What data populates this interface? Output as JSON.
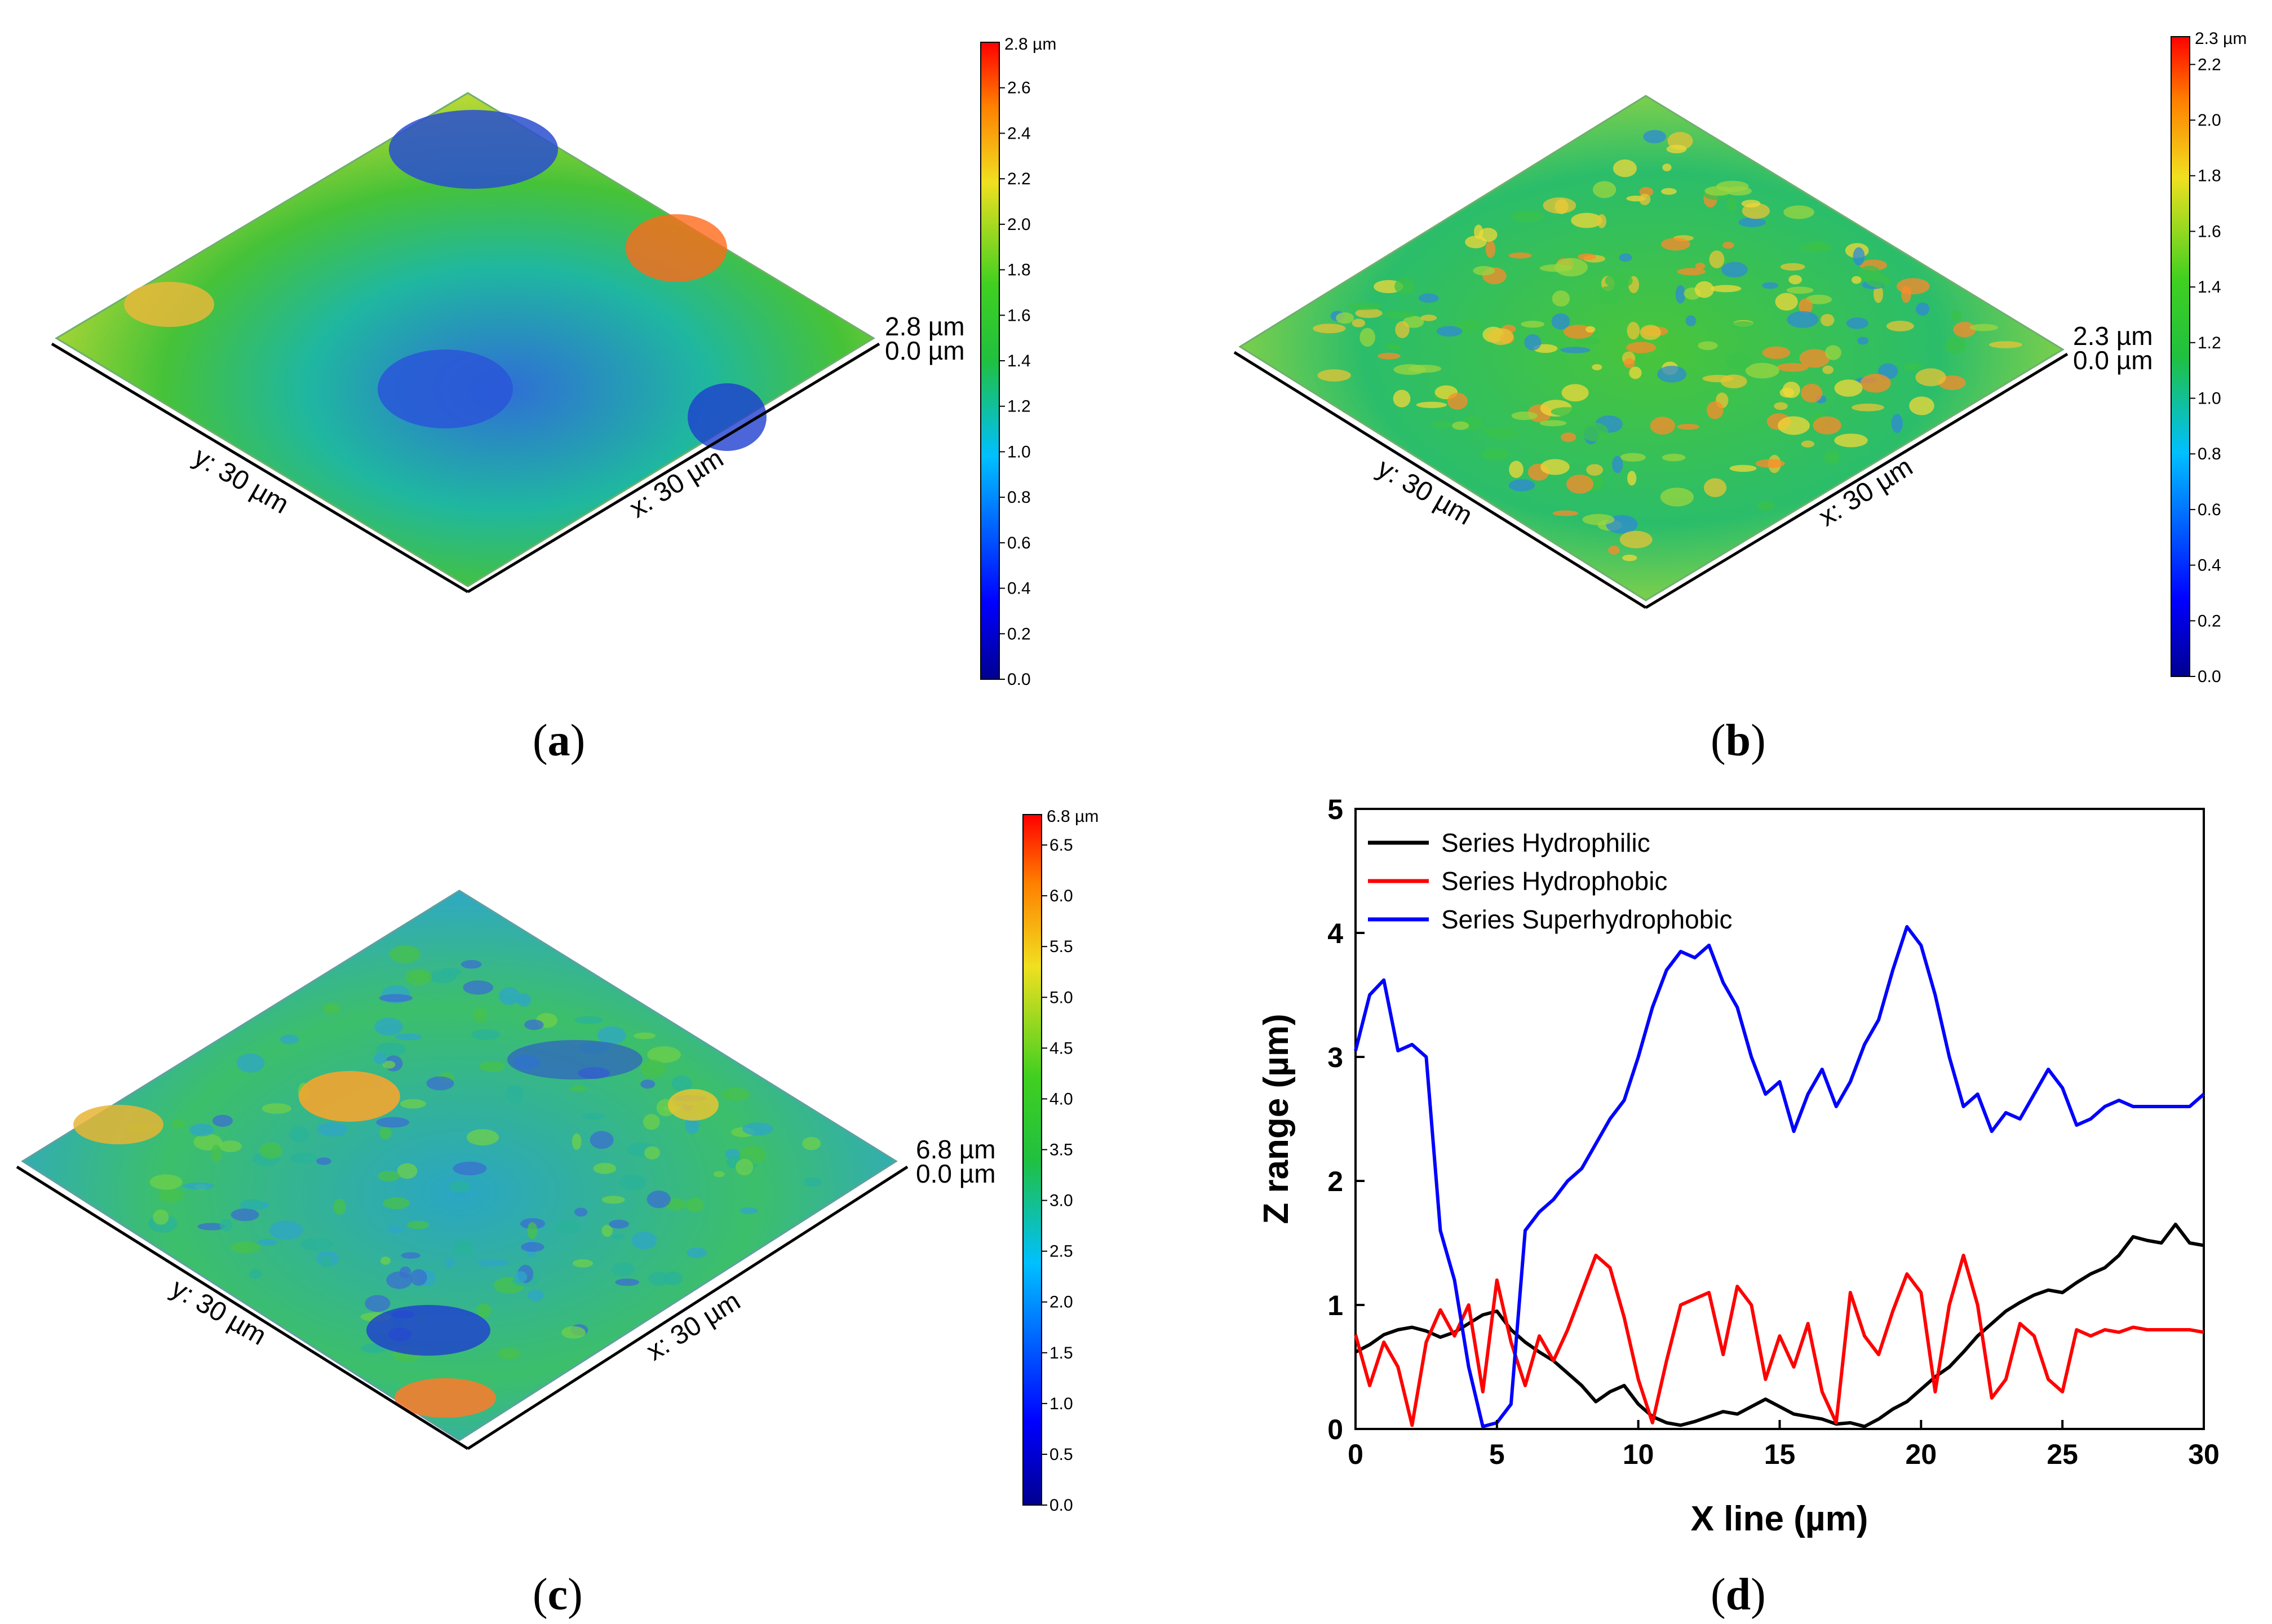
{
  "panels": [
    {
      "id": "a",
      "label_letter": "a",
      "kind": "afm-3d",
      "scale_unit_label": "2.8 µm",
      "scale_max": 2.8,
      "scale_ticks": [
        "0.0",
        "0.2",
        "0.4",
        "0.6",
        "0.8",
        "1.0",
        "1.2",
        "1.4",
        "1.6",
        "1.8",
        "2.0",
        "2.2",
        "2.4",
        "2.6"
      ],
      "z_top_label": "2.8 µm",
      "z_bottom_label": "0.0 µm",
      "y_axis_label": "y: 30 µm",
      "x_axis_label": "x: 30 µm"
    },
    {
      "id": "b",
      "label_letter": "b",
      "kind": "afm-3d",
      "scale_unit_label": "2.3 µm",
      "scale_max": 2.3,
      "scale_ticks": [
        "0.0",
        "0.2",
        "0.4",
        "0.6",
        "0.8",
        "1.0",
        "1.2",
        "1.4",
        "1.6",
        "1.8",
        "2.0",
        "2.2"
      ],
      "z_top_label": "2.3 µm",
      "z_bottom_label": "0.0 µm",
      "y_axis_label": "y: 30 µm",
      "x_axis_label": "x: 30 µm"
    },
    {
      "id": "c",
      "label_letter": "c",
      "kind": "afm-3d",
      "scale_unit_label": "6.8 µm",
      "scale_max": 6.8,
      "scale_ticks": [
        "0.0",
        "0.5",
        "1.0",
        "1.5",
        "2.0",
        "2.5",
        "3.0",
        "3.5",
        "4.0",
        "4.5",
        "5.0",
        "5.5",
        "6.0",
        "6.5"
      ],
      "z_top_label": "6.8 µm",
      "z_bottom_label": "0.0 µm",
      "y_axis_label": "y: 30 µm",
      "x_axis_label": "x: 30 µm"
    }
  ],
  "chart_data": {
    "panel_letter": "d",
    "type": "line",
    "title": "",
    "xlabel": "X line (µm)",
    "ylabel": "Z range (µm)",
    "xlim": [
      0,
      30
    ],
    "ylim": [
      0,
      5
    ],
    "xticks": [
      0,
      5,
      10,
      15,
      20,
      25,
      30
    ],
    "yticks": [
      0,
      1,
      2,
      3,
      4,
      5
    ],
    "legend_position": "top-left",
    "series": [
      {
        "name": "Series Hydrophilic",
        "color": "#000000",
        "x": [
          0,
          0.5,
          1,
          1.5,
          2,
          2.5,
          3,
          3.5,
          4,
          4.5,
          5,
          5.5,
          6,
          6.5,
          7,
          7.5,
          8,
          8.5,
          9,
          9.5,
          10,
          10.5,
          11,
          11.5,
          12,
          12.5,
          13,
          13.5,
          14,
          14.5,
          15,
          15.5,
          16,
          16.5,
          17,
          17.5,
          18,
          18.5,
          19,
          19.5,
          20,
          20.5,
          21,
          21.5,
          22,
          22.5,
          23,
          23.5,
          24,
          24.5,
          25,
          25.5,
          26,
          26.5,
          27,
          27.5,
          28,
          28.5,
          29,
          29.5,
          30
        ],
        "y": [
          0.62,
          0.68,
          0.76,
          0.8,
          0.82,
          0.79,
          0.74,
          0.78,
          0.85,
          0.92,
          0.95,
          0.8,
          0.7,
          0.62,
          0.55,
          0.45,
          0.35,
          0.22,
          0.3,
          0.35,
          0.2,
          0.1,
          0.05,
          0.03,
          0.06,
          0.1,
          0.14,
          0.12,
          0.18,
          0.24,
          0.18,
          0.12,
          0.1,
          0.08,
          0.04,
          0.05,
          0.02,
          0.08,
          0.16,
          0.22,
          0.32,
          0.42,
          0.5,
          0.62,
          0.75,
          0.85,
          0.95,
          1.02,
          1.08,
          1.12,
          1.1,
          1.18,
          1.25,
          1.3,
          1.4,
          1.55,
          1.52,
          1.5,
          1.65,
          1.5,
          1.48
        ]
      },
      {
        "name": "Series Hydrophobic",
        "color": "#ff0000",
        "x": [
          0,
          0.5,
          1,
          1.5,
          2,
          2.5,
          3,
          3.5,
          4,
          4.5,
          5,
          5.5,
          6,
          6.5,
          7,
          7.5,
          8,
          8.5,
          9,
          9.5,
          10,
          10.5,
          11,
          11.5,
          12,
          12.5,
          13,
          13.5,
          14,
          14.5,
          15,
          15.5,
          16,
          16.5,
          17,
          17.5,
          18,
          18.5,
          19,
          19.5,
          20,
          20.5,
          21,
          21.5,
          22,
          22.5,
          23,
          23.5,
          24,
          24.5,
          25,
          25.5,
          26,
          26.5,
          27,
          27.5,
          28,
          28.5,
          29,
          29.5,
          30
        ],
        "y": [
          0.76,
          0.35,
          0.7,
          0.5,
          0.03,
          0.7,
          0.96,
          0.75,
          1.0,
          0.3,
          1.2,
          0.7,
          0.35,
          0.75,
          0.55,
          0.8,
          1.1,
          1.4,
          1.3,
          0.9,
          0.4,
          0.05,
          0.55,
          1.0,
          1.05,
          1.1,
          0.6,
          1.15,
          1.0,
          0.4,
          0.75,
          0.5,
          0.85,
          0.3,
          0.05,
          1.1,
          0.75,
          0.6,
          0.95,
          1.25,
          1.1,
          0.3,
          1.0,
          1.4,
          1.0,
          0.25,
          0.4,
          0.85,
          0.75,
          0.4,
          0.3,
          0.8,
          0.75,
          0.8,
          0.78,
          0.82,
          0.8,
          0.8,
          0.8,
          0.8,
          0.78
        ]
      },
      {
        "name": "Series Superhydrophobic",
        "color": "#0000ff",
        "x": [
          0,
          0.5,
          1,
          1.5,
          2,
          2.5,
          3,
          3.5,
          4,
          4.5,
          5,
          5.5,
          6,
          6.5,
          7,
          7.5,
          8,
          8.5,
          9,
          9.5,
          10,
          10.5,
          11,
          11.5,
          12,
          12.5,
          13,
          13.5,
          14,
          14.5,
          15,
          15.5,
          16,
          16.5,
          17,
          17.5,
          18,
          18.5,
          19,
          19.5,
          20,
          20.5,
          21,
          21.5,
          22,
          22.5,
          23,
          23.5,
          24,
          24.5,
          25,
          25.5,
          26,
          26.5,
          27,
          27.5,
          28,
          28.5,
          29,
          29.5,
          30
        ],
        "y": [
          3.05,
          3.5,
          3.62,
          3.05,
          3.1,
          3.0,
          1.6,
          1.2,
          0.5,
          0.02,
          0.05,
          0.2,
          1.6,
          1.75,
          1.85,
          2.0,
          2.1,
          2.3,
          2.5,
          2.65,
          3.0,
          3.4,
          3.7,
          3.85,
          3.8,
          3.9,
          3.6,
          3.4,
          3.0,
          2.7,
          2.8,
          2.4,
          2.7,
          2.9,
          2.6,
          2.8,
          3.1,
          3.3,
          3.7,
          4.05,
          3.9,
          3.5,
          3.0,
          2.6,
          2.7,
          2.4,
          2.55,
          2.5,
          2.7,
          2.9,
          2.75,
          2.45,
          2.5,
          2.6,
          2.65,
          2.6,
          2.6,
          2.6,
          2.6,
          2.6,
          2.7
        ]
      }
    ]
  }
}
